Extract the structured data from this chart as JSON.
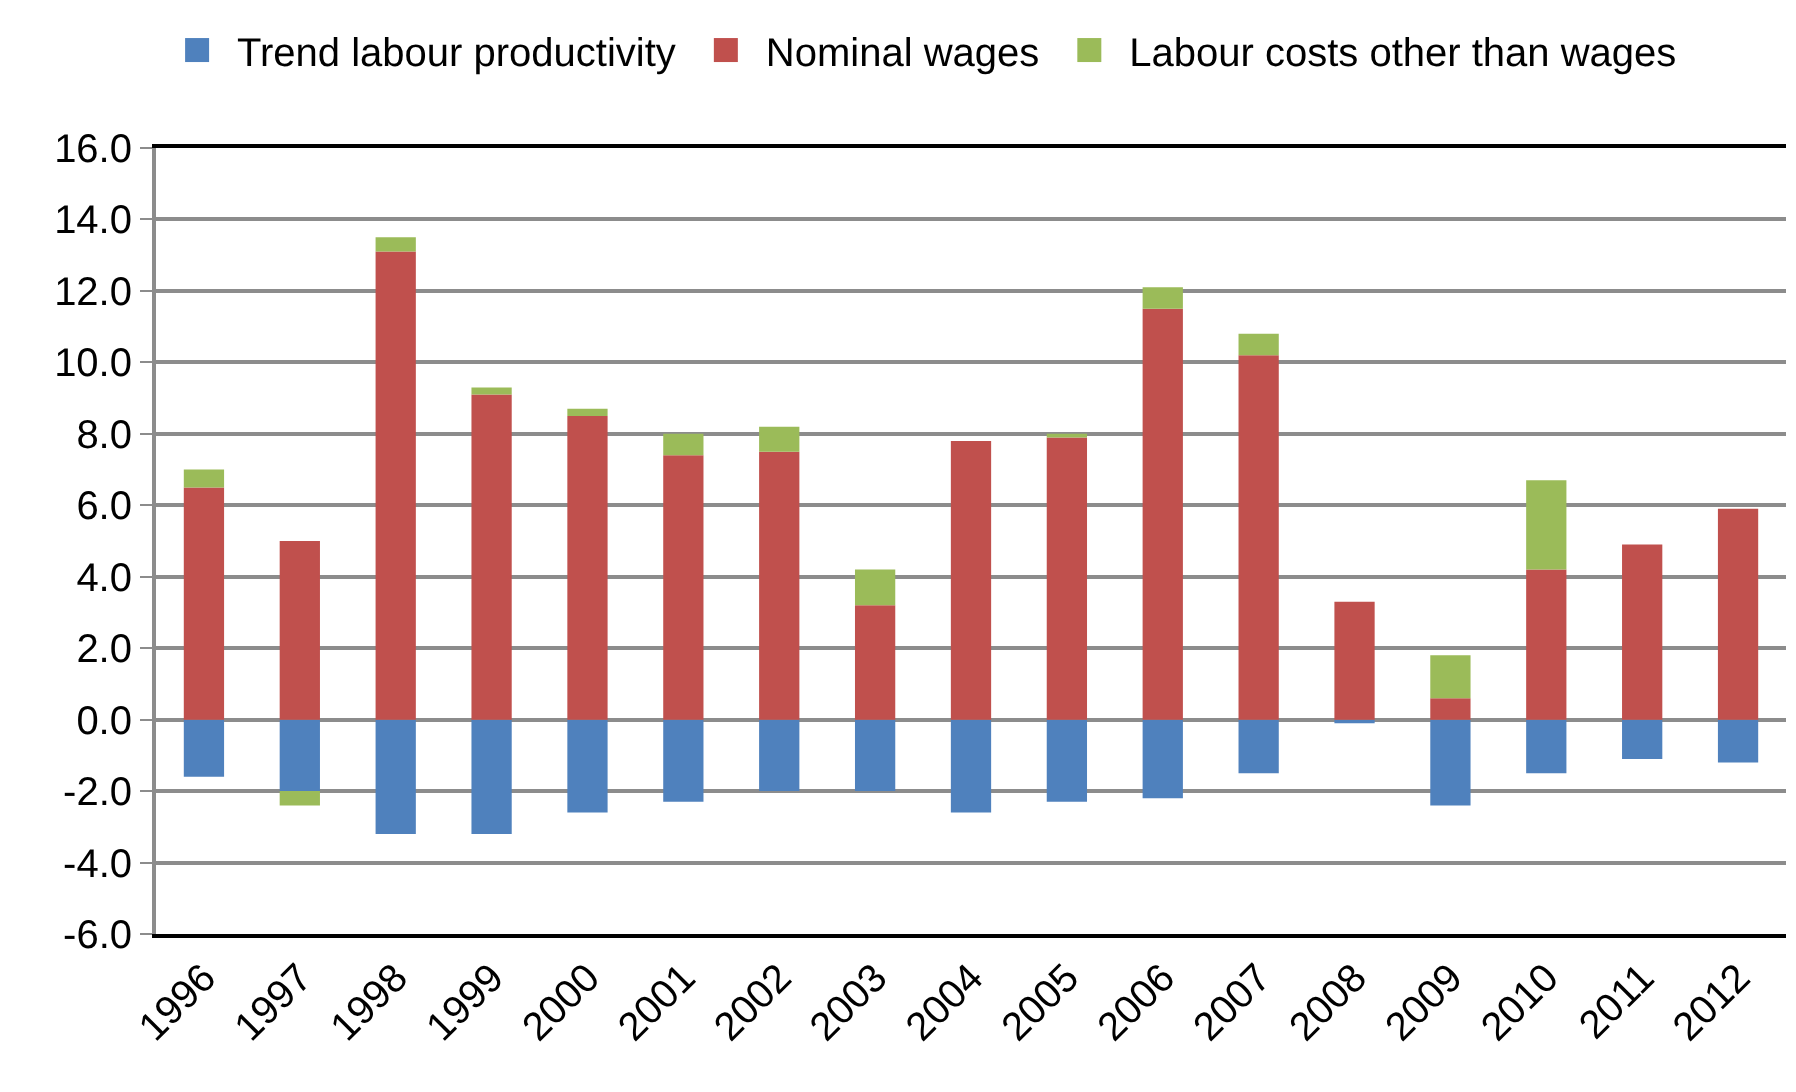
{
  "chart_data": {
    "type": "bar",
    "stacked": true,
    "categories": [
      "1996",
      "1997",
      "1998",
      "1999",
      "2000",
      "2001",
      "2002",
      "2003",
      "2004",
      "2005",
      "2006",
      "2007",
      "2008",
      "2009",
      "2010",
      "2011",
      "2012"
    ],
    "series": [
      {
        "name": "Trend labour productivity",
        "color": "#4f81bd",
        "values": [
          -1.6,
          -2.0,
          -3.2,
          -3.2,
          -2.6,
          -2.3,
          -2.0,
          -2.0,
          -2.6,
          -2.3,
          -2.2,
          -1.5,
          -0.1,
          -2.4,
          -1.5,
          -1.1,
          -1.2
        ]
      },
      {
        "name": "Nominal wages",
        "color": "#c0504d",
        "values": [
          6.5,
          5.0,
          13.1,
          9.1,
          8.5,
          7.4,
          7.5,
          3.2,
          7.8,
          7.9,
          11.5,
          10.2,
          3.3,
          0.6,
          4.2,
          4.9,
          5.9
        ]
      },
      {
        "name": "Labour costs other than wages",
        "color": "#9bbb59",
        "values": [
          0.5,
          -0.4,
          0.4,
          0.2,
          0.2,
          0.6,
          0.7,
          1.0,
          null,
          0.1,
          0.6,
          0.6,
          null,
          1.2,
          2.5,
          null,
          null
        ]
      }
    ],
    "ylim": [
      -6,
      16
    ],
    "yticks": [
      {
        "value": -6,
        "label": "-6.0"
      },
      {
        "value": -4,
        "label": "-4.0"
      },
      {
        "value": -2,
        "label": "-2.0"
      },
      {
        "value": 0,
        "label": "0.0"
      },
      {
        "value": 2,
        "label": "2.0"
      },
      {
        "value": 4,
        "label": "4.0"
      },
      {
        "value": 6,
        "label": "6.0"
      },
      {
        "value": 8,
        "label": "8.0"
      },
      {
        "value": 10,
        "label": "10.0"
      },
      {
        "value": 12,
        "label": "12.0"
      },
      {
        "value": 14,
        "label": "14.0"
      },
      {
        "value": 16,
        "label": "16.0"
      }
    ],
    "grid": "y",
    "legend": "top"
  }
}
